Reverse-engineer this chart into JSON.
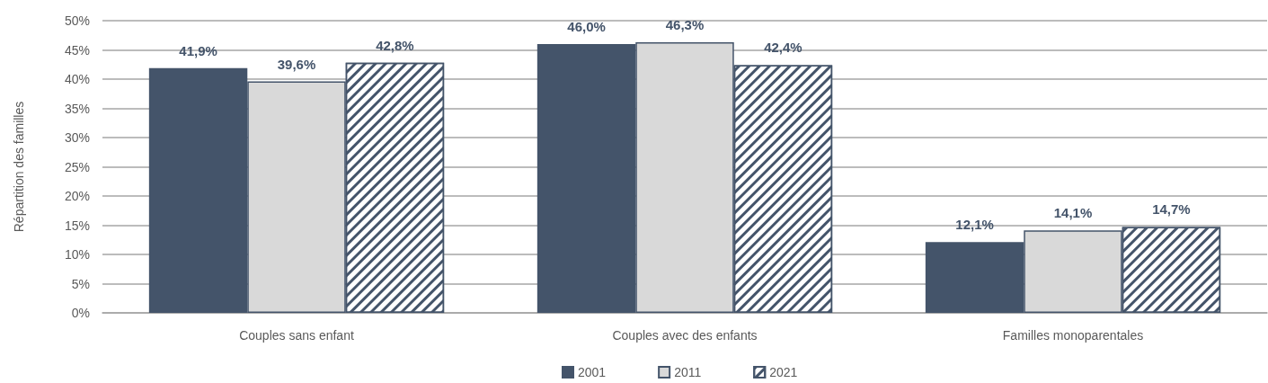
{
  "chart_data": {
    "type": "bar",
    "ylabel": "Répartition des familles",
    "categories": [
      "Couples sans enfant",
      "Couples avec des enfants",
      "Familles monoparentales"
    ],
    "series": [
      {
        "name": "2001",
        "color": "#44546a",
        "values": [
          41.9,
          46.0,
          12.1
        ],
        "value_labels": [
          "41,9%",
          "46,0%",
          "12,1%"
        ]
      },
      {
        "name": "2011",
        "color": "#d9d9d9",
        "values": [
          39.6,
          46.3,
          14.1
        ],
        "value_labels": [
          "39,6%",
          "46,3%",
          "14,1%"
        ]
      },
      {
        "name": "2021",
        "color": "#44546a",
        "values": [
          42.8,
          42.4,
          14.7
        ],
        "value_labels": [
          "42,8%",
          "42,4%",
          "14,7%"
        ]
      }
    ],
    "ylim": [
      0,
      50
    ],
    "yticks": [
      {
        "value": 0,
        "label": "0%"
      },
      {
        "value": 5,
        "label": "5%"
      },
      {
        "value": 10,
        "label": "10%"
      },
      {
        "value": 15,
        "label": "15%"
      },
      {
        "value": 20,
        "label": "20%"
      },
      {
        "value": 25,
        "label": "25%"
      },
      {
        "value": 30,
        "label": "30%"
      },
      {
        "value": 35,
        "label": "35%"
      },
      {
        "value": 40,
        "label": "40%"
      },
      {
        "value": 45,
        "label": "45%"
      },
      {
        "value": 50,
        "label": "50%"
      }
    ],
    "grid": "y",
    "legend": "bottom"
  }
}
